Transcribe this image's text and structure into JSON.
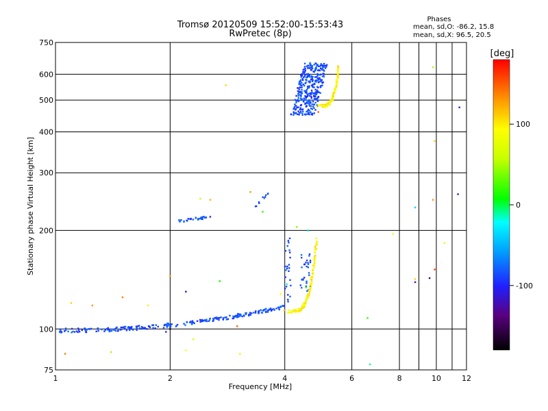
{
  "chart_data": {
    "type": "scatter",
    "title": "Tromsø 20120509 15:52:00-15:53:43",
    "subtitle": "RwPretec (8p)",
    "xlabel": "Frequency [MHz]",
    "ylabel": "Stationary phase Virtual Height [km]",
    "x_scale": "log",
    "y_scale": "log",
    "xlim": [
      1,
      12
    ],
    "ylim": [
      75,
      750
    ],
    "x_ticks": [
      1,
      2,
      4,
      6,
      8,
      10,
      12
    ],
    "y_ticks": [
      75,
      100,
      200,
      300,
      400,
      500,
      600,
      750
    ],
    "x_grid_lines": [
      2,
      4,
      6,
      8,
      9,
      10,
      11
    ],
    "y_grid_lines": [
      100,
      200,
      300,
      400,
      500,
      600
    ],
    "grid": true,
    "phases_box": {
      "heading": "Phases",
      "line_o": "mean, sd,O:  -86.2, 15.8",
      "line_x": "mean, sd,X:  96.5, 20.5"
    },
    "colorbar": {
      "label": "[deg]",
      "range": [
        -180,
        180
      ],
      "ticks": [
        "100",
        "0",
        "-100"
      ],
      "tick_values": [
        100,
        0,
        -100
      ]
    },
    "series": [
      {
        "mode": "O",
        "phase_deg": -86,
        "traces": [
          {
            "kind": "trace",
            "x0": 1.02,
            "x1": 4.0,
            "y0": 99,
            "y1": 117,
            "n": 260,
            "jitter": 1.5,
            "shape": "rise"
          },
          {
            "kind": "cloud",
            "x0": 4.15,
            "x1": 5.2,
            "y0": 450,
            "y1": 650,
            "n": 360,
            "shape": "ellipse"
          },
          {
            "kind": "cloud",
            "x0": 4.0,
            "x1": 4.15,
            "y0": 120,
            "y1": 190,
            "n": 25,
            "shape": "box"
          },
          {
            "kind": "cloud",
            "x0": 4.4,
            "x1": 4.7,
            "y0": 130,
            "y1": 175,
            "n": 30,
            "shape": "box"
          },
          {
            "kind": "trace",
            "x0": 2.1,
            "x1": 2.55,
            "y0": 213,
            "y1": 220,
            "n": 30,
            "jitter": 2,
            "shape": "flat"
          },
          {
            "kind": "trace",
            "x0": 3.35,
            "x1": 3.7,
            "y0": 240,
            "y1": 260,
            "n": 10,
            "jitter": 4,
            "shape": "flat"
          }
        ]
      },
      {
        "mode": "X",
        "phase_deg": 95,
        "traces": [
          {
            "kind": "hook",
            "x0": 4.0,
            "x1": 4.85,
            "y0": 113,
            "y1": 190,
            "n": 130
          },
          {
            "kind": "hook",
            "x0": 4.85,
            "x1": 5.55,
            "y0": 480,
            "y1": 640,
            "n": 90
          }
        ]
      },
      {
        "mode": "noise",
        "points": [
          [
            1.1,
            120,
            110
          ],
          [
            1.25,
            118,
            130
          ],
          [
            1.5,
            125,
            140
          ],
          [
            1.75,
            118,
            100
          ],
          [
            2.0,
            145,
            130
          ],
          [
            2.4,
            250,
            60
          ],
          [
            2.55,
            248,
            120
          ],
          [
            2.8,
            555,
            110
          ],
          [
            3.25,
            262,
            130
          ],
          [
            3.5,
            228,
            20
          ],
          [
            4.3,
            205,
            40
          ],
          [
            3.05,
            84,
            100
          ],
          [
            2.2,
            86,
            90
          ],
          [
            1.4,
            85,
            50
          ],
          [
            1.06,
            84,
            140
          ],
          [
            6.6,
            108,
            20
          ],
          [
            6.7,
            78,
            -10
          ],
          [
            7.7,
            195,
            95
          ],
          [
            8.8,
            235,
            -40
          ],
          [
            8.8,
            139,
            -120
          ],
          [
            9.8,
            248,
            130
          ],
          [
            9.9,
            152,
            160
          ],
          [
            9.9,
            375,
            110
          ],
          [
            9.8,
            630,
            50
          ],
          [
            10.5,
            183,
            80
          ],
          [
            11.5,
            475,
            -110
          ],
          [
            11.4,
            258,
            -120
          ],
          [
            9.6,
            143,
            -150
          ],
          [
            8.8,
            142,
            110
          ],
          [
            2.3,
            93,
            70
          ],
          [
            3.0,
            102,
            150
          ],
          [
            2.7,
            140,
            10
          ],
          [
            1.95,
            98,
            -100
          ],
          [
            2.0,
            100,
            -170
          ],
          [
            4.05,
            137,
            -30
          ],
          [
            4.55,
            134,
            10
          ],
          [
            4.6,
            200,
            -40
          ],
          [
            4.9,
            460,
            150
          ],
          [
            3.9,
            128,
            90
          ],
          [
            2.2,
            130,
            -120
          ]
        ]
      }
    ]
  }
}
